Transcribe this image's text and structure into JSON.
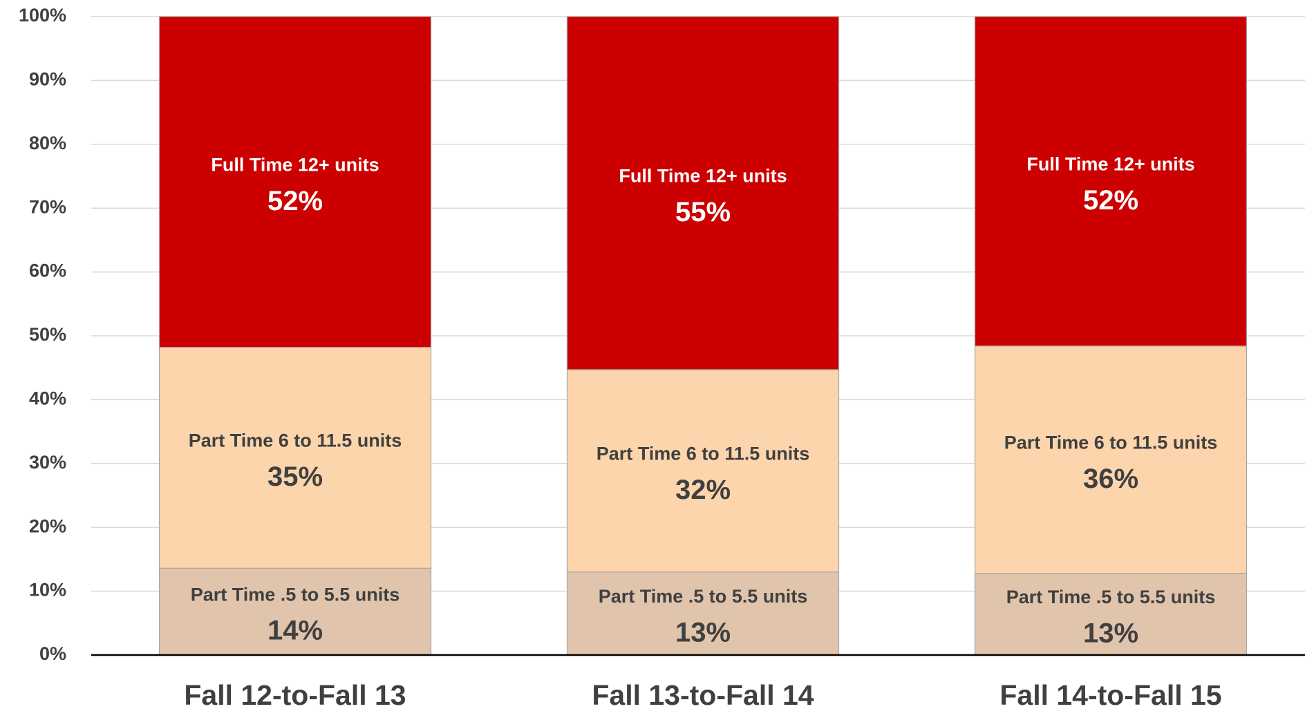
{
  "chart_data": {
    "type": "stacked_bar",
    "categories": [
      "Fall 12-to-Fall 13",
      "Fall 13-to-Fall 14",
      "Fall 14-to-Fall 15"
    ],
    "series": [
      {
        "name": "Part Time .5 to 5.5 units",
        "color": "#e0c4ab",
        "label_color": "#404040",
        "values": [
          13.6,
          13.0,
          12.8
        ],
        "value_labels": [
          "14%",
          "13%",
          "13%"
        ]
      },
      {
        "name": "Part Time 6 to 11.5 units",
        "color": "#fdd5ac",
        "label_color": "#404040",
        "values": [
          34.6,
          31.7,
          35.6
        ],
        "value_labels": [
          "35%",
          "32%",
          "36%"
        ]
      },
      {
        "name": "Full Time 12+ units",
        "color": "#cc0000",
        "label_color": "#ffffff",
        "values": [
          51.8,
          55.3,
          51.6
        ],
        "value_labels": [
          "52%",
          "55%",
          "52%"
        ]
      }
    ],
    "ylim": [
      0,
      100
    ],
    "yticks": [
      {
        "value": 0,
        "label": "0%"
      },
      {
        "value": 10,
        "label": "10%"
      },
      {
        "value": 20,
        "label": "20%"
      },
      {
        "value": 30,
        "label": "30%"
      },
      {
        "value": 40,
        "label": "40%"
      },
      {
        "value": 50,
        "label": "50%"
      },
      {
        "value": 60,
        "label": "60%"
      },
      {
        "value": 70,
        "label": "70%"
      },
      {
        "value": 80,
        "label": "80%"
      },
      {
        "value": 90,
        "label": "90%"
      },
      {
        "value": 100,
        "label": "100%"
      }
    ],
    "grid": true
  }
}
